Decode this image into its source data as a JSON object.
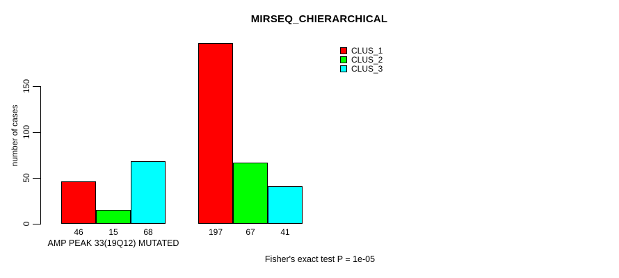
{
  "chart_data": {
    "type": "bar",
    "title": "MIRSEQ_CHIERARCHICAL",
    "ylabel": "number of cases",
    "xlabel": "AMP PEAK 33(19Q12) MUTATED",
    "annotation": "Fisher's exact test P = 1e-05",
    "y_ticks": [
      0,
      50,
      100,
      150
    ],
    "ylim": [
      0,
      200
    ],
    "grid": false,
    "legend_position": "top-right",
    "series": [
      {
        "name": "CLUS_1",
        "color": "#ff0000"
      },
      {
        "name": "CLUS_2",
        "color": "#00ff00"
      },
      {
        "name": "CLUS_3",
        "color": "#00ffff"
      }
    ],
    "groups": [
      {
        "label": "AMP PEAK 33(19Q12) MUTATED",
        "values": [
          46,
          15,
          68
        ]
      },
      {
        "label": "",
        "values": [
          197,
          67,
          41
        ]
      }
    ],
    "colors": {
      "axis": "#000000",
      "background": "#ffffff",
      "text": "#000000"
    }
  }
}
